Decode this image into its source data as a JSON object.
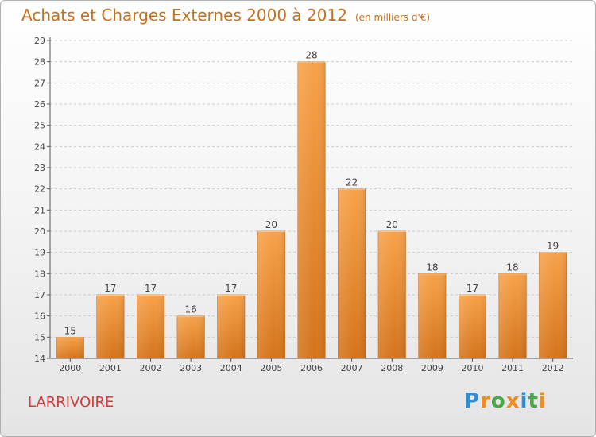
{
  "header": {
    "title": "Achats et Charges Externes 2000 à 2012",
    "unit": "(en milliers d'€)"
  },
  "footer": {
    "commune": "LARRIVOIRE",
    "logo": [
      "P",
      "r",
      "o",
      "x",
      "i",
      "t",
      "i"
    ]
  },
  "colors": {
    "bar_top": "#f7a24a",
    "bar_bottom": "#d4741c",
    "title": "#c0701e",
    "commune": "#cf3a3a"
  },
  "chart_data": {
    "type": "bar",
    "title": "Achats et Charges Externes 2000 à 2012",
    "subtitle": "(en milliers d'€)",
    "categories": [
      "2000",
      "2001",
      "2002",
      "2003",
      "2004",
      "2005",
      "2006",
      "2007",
      "2008",
      "2009",
      "2010",
      "2011",
      "2012"
    ],
    "values": [
      15,
      17,
      17,
      16,
      17,
      20,
      28,
      22,
      20,
      18,
      17,
      18,
      19
    ],
    "ylim": [
      14,
      29
    ],
    "yticks": [
      14,
      15,
      16,
      17,
      18,
      19,
      20,
      21,
      22,
      23,
      24,
      25,
      26,
      27,
      28,
      29
    ],
    "grid": true,
    "legend": "none",
    "data_labels": true
  }
}
